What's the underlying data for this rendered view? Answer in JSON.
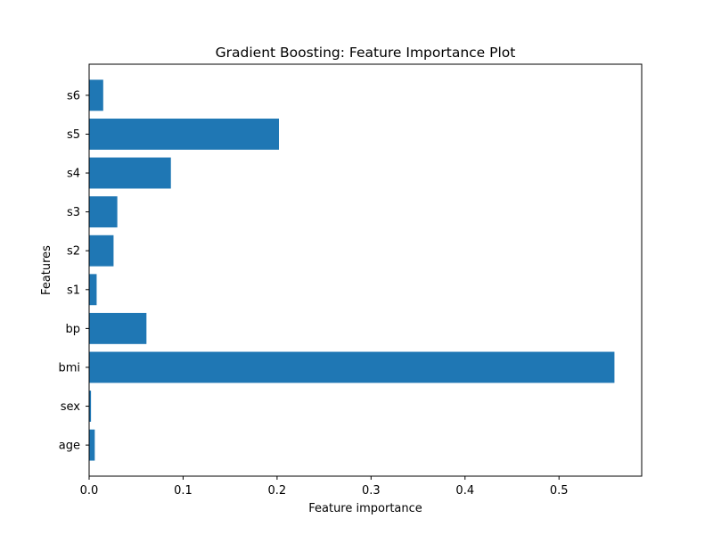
{
  "chart_data": {
    "type": "bar",
    "orientation": "horizontal",
    "title": "Gradient Boosting: Feature Importance Plot",
    "xlabel": "Feature importance",
    "ylabel": "Features",
    "categories": [
      "age",
      "sex",
      "bmi",
      "bp",
      "s1",
      "s2",
      "s3",
      "s4",
      "s5",
      "s6"
    ],
    "values": [
      0.006,
      0.002,
      0.559,
      0.061,
      0.008,
      0.026,
      0.03,
      0.087,
      0.202,
      0.015
    ],
    "xlim": [
      0,
      0.588
    ],
    "xticks": [
      0.0,
      0.1,
      0.2,
      0.3,
      0.4,
      0.5
    ],
    "xtick_labels": [
      "0.0",
      "0.1",
      "0.2",
      "0.3",
      "0.4",
      "0.5"
    ],
    "grid": false,
    "bar_color": "#1f77b4"
  }
}
